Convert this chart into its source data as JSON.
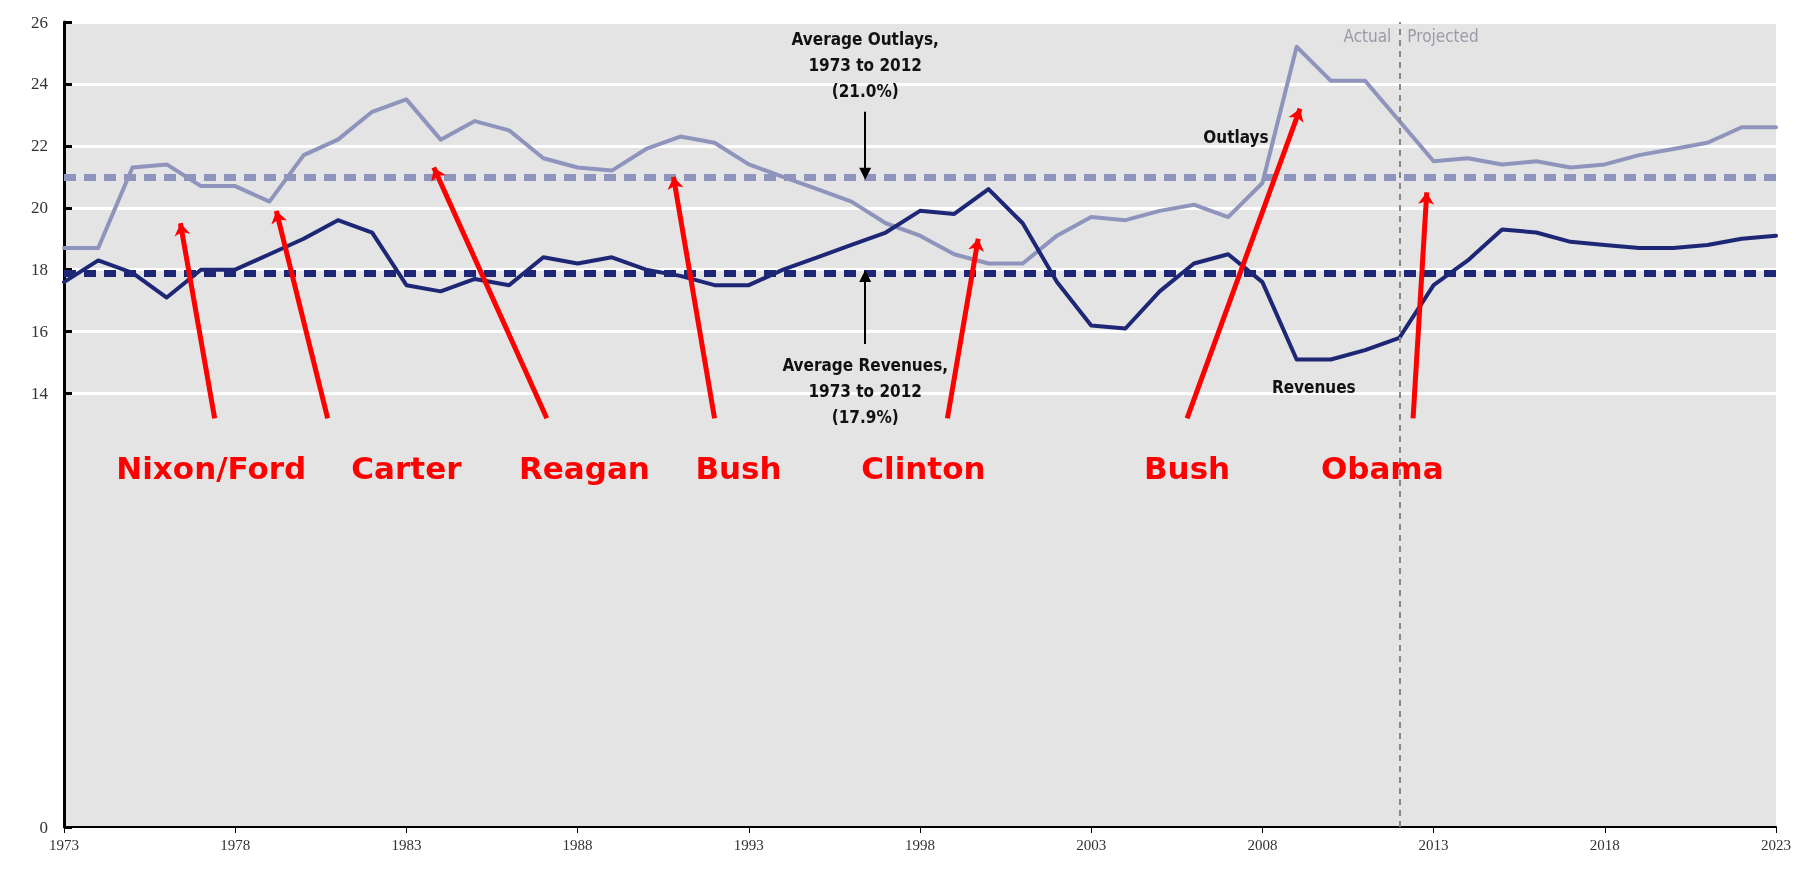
{
  "chart_data": {
    "type": "line",
    "x": [
      1973,
      1974,
      1975,
      1976,
      1977,
      1978,
      1979,
      1980,
      1981,
      1982,
      1983,
      1984,
      1985,
      1986,
      1987,
      1988,
      1989,
      1990,
      1991,
      1992,
      1993,
      1994,
      1995,
      1996,
      1997,
      1998,
      1999,
      2000,
      2001,
      2002,
      2003,
      2004,
      2005,
      2006,
      2007,
      2008,
      2009,
      2010,
      2011,
      2012,
      2013,
      2014,
      2015,
      2016,
      2017,
      2018,
      2019,
      2020,
      2021,
      2022,
      2023
    ],
    "series": [
      {
        "name": "Outlays",
        "color": "#8f94bd",
        "values": [
          18.7,
          18.7,
          21.3,
          21.4,
          20.7,
          20.7,
          20.2,
          21.7,
          22.2,
          23.1,
          23.5,
          22.2,
          22.8,
          22.5,
          21.6,
          21.3,
          21.2,
          21.9,
          22.3,
          22.1,
          21.4,
          21.0,
          20.6,
          20.2,
          19.5,
          19.1,
          18.5,
          18.2,
          18.2,
          19.1,
          19.7,
          19.6,
          19.9,
          20.1,
          19.7,
          20.8,
          25.2,
          24.1,
          24.1,
          22.8,
          21.5,
          21.6,
          21.4,
          21.5,
          21.3,
          21.4,
          21.7,
          21.9,
          22.1,
          22.6,
          22.6
        ]
      },
      {
        "name": "Revenues",
        "color": "#1e2775",
        "values": [
          17.6,
          18.3,
          17.9,
          17.1,
          18.0,
          18.0,
          18.5,
          19.0,
          19.6,
          19.2,
          17.5,
          17.3,
          17.7,
          17.5,
          18.4,
          18.2,
          18.4,
          18.0,
          17.8,
          17.5,
          17.5,
          18.0,
          18.4,
          18.8,
          19.2,
          19.9,
          19.8,
          20.6,
          19.5,
          17.6,
          16.2,
          16.1,
          17.3,
          18.2,
          18.5,
          17.6,
          15.1,
          15.1,
          15.4,
          15.8,
          17.5,
          18.3,
          19.3,
          19.2,
          18.9,
          18.8,
          18.7,
          18.7,
          18.8,
          19.0,
          19.1
        ]
      }
    ],
    "xlim": [
      1973,
      2023
    ],
    "xticks": [
      1973,
      1978,
      1983,
      1988,
      1993,
      1998,
      2003,
      2008,
      2013,
      2018,
      2023
    ],
    "ylim": [
      0,
      26
    ],
    "yticks": [
      0,
      14,
      16,
      18,
      20,
      22,
      24,
      26
    ],
    "grid": "y",
    "legend": false,
    "marker": "none",
    "line_style": "solid",
    "ref_lines": [
      {
        "axis": "y",
        "value": 21.0,
        "color": "#8f94bd",
        "line_style": "dashed"
      },
      {
        "axis": "y",
        "value": 17.9,
        "color": "#1e2775",
        "line_style": "dashed"
      },
      {
        "axis": "x",
        "value": 2012,
        "color": "#888888",
        "line_style": "dashed"
      }
    ],
    "annotations": [
      {
        "text": "Actual",
        "x": 2012,
        "y": 26
      },
      {
        "text": "Projected",
        "x": 2012,
        "y": 26
      },
      {
        "text": "Average Outlays,\n1973 to 2012\n(21.0%)",
        "x": 1996.4,
        "y": 21.0
      },
      {
        "text": "Average Revenues,\n1973 to 2012\n(17.9%)",
        "x": 1996.4,
        "y": 17.9
      },
      "Nixon/Ford",
      "Carter",
      "Reagan",
      {
        "text": "Bush",
        "x": 1990.8,
        "y": 21.0
      },
      "Clinton",
      "Bush",
      "Obama"
    ]
  }
}
